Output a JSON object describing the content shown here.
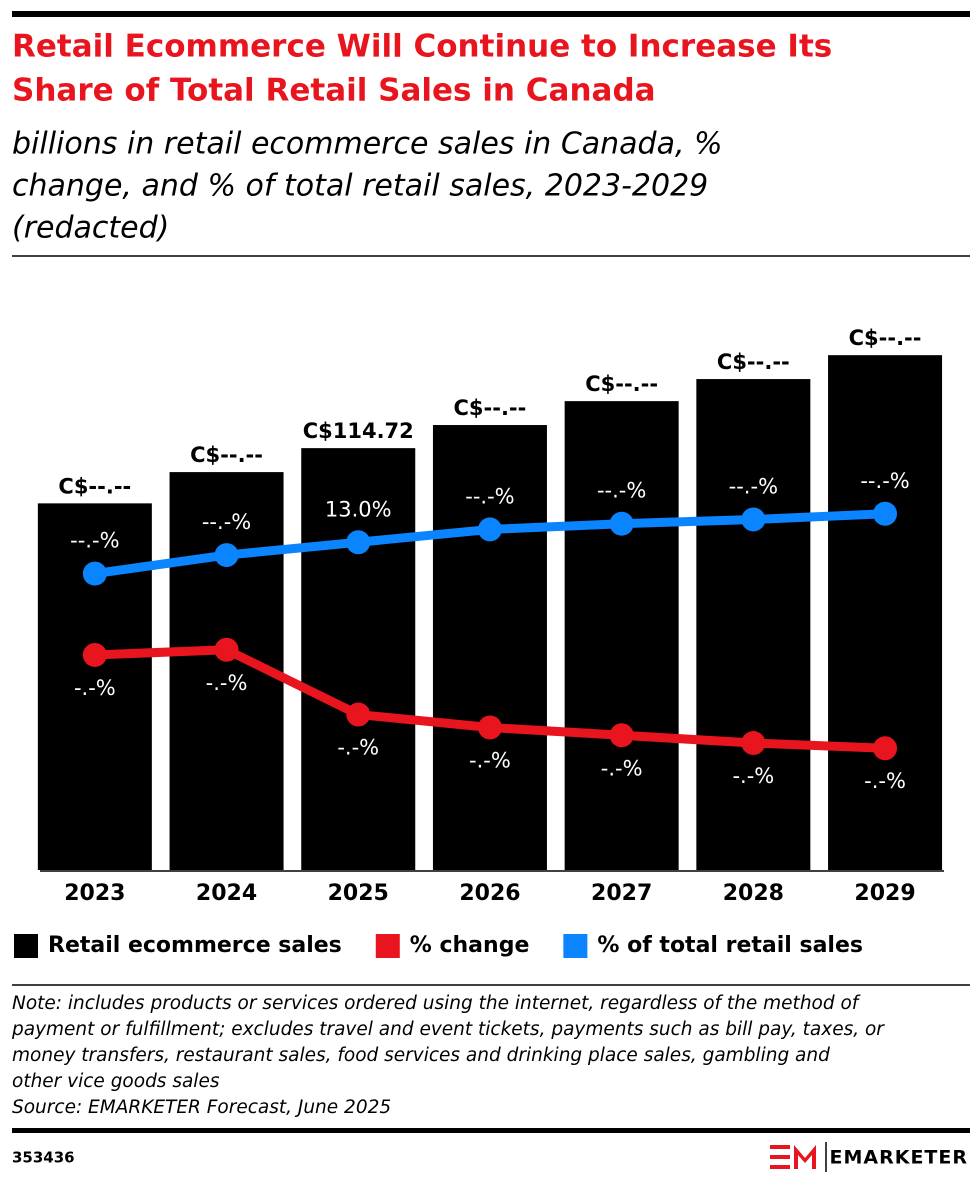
{
  "chart_data": {
    "type": "bar",
    "title": [
      "Retail Ecommerce Will Continue to Increase Its",
      "Share of Total Retail Sales in Canada"
    ],
    "subtitle": [
      "billions in retail ecommerce sales in Canada, %",
      "change, and % of total retail sales, 2023-2029",
      "(redacted)"
    ],
    "categories": [
      "2023",
      "2024",
      "2025",
      "2026",
      "2027",
      "2028",
      "2029"
    ],
    "ylim": [
      0,
      155
    ],
    "series": [
      {
        "name": "Retail ecommerce sales",
        "type": "bar",
        "color": "#000000",
        "values": [
          99.7,
          108.2,
          114.72,
          121.0,
          127.5,
          133.5,
          140.0
        ],
        "value_labels": [
          "C$--.--",
          "C$--.--",
          "C$114.72",
          "C$--.--",
          "C$--.--",
          "C$--.--",
          "C$--.--"
        ]
      },
      {
        "name": "% change",
        "type": "line",
        "color": "#e8141e",
        "ylim": [
          0,
          22
        ],
        "values": [
          8.3,
          8.5,
          6.0,
          5.5,
          5.2,
          4.9,
          4.7
        ],
        "value_labels": [
          "-.-%",
          "-.-%",
          "-.-%",
          "-.-%",
          "-.-%",
          "-.-%",
          "-.-%"
        ]
      },
      {
        "name": "% of total retail sales",
        "type": "line",
        "color": "#0a84ff",
        "ylim": [
          -10,
          30
        ],
        "values": [
          10.8,
          12.1,
          13.0,
          13.9,
          14.3,
          14.6,
          15.0
        ],
        "value_labels": [
          "--.-%",
          "--.-%",
          "13.0%",
          "--.-%",
          "--.-%",
          "--.-%",
          "--.-%"
        ]
      }
    ],
    "note": [
      "Note: includes products or services ordered using the internet, regardless of the method of",
      "payment or fulfillment; excludes travel and event tickets, payments such as bill pay, taxes, or",
      "money transfers, restaurant sales, food services and drinking place sales, gambling and",
      "other vice goods sales"
    ],
    "source": "Source: EMARKETER Forecast, June 2025",
    "chart_id": "353436",
    "brand": "EMARKETER"
  }
}
